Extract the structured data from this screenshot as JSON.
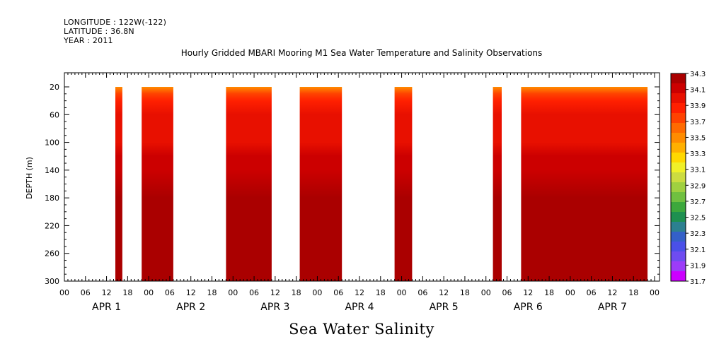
{
  "header": {
    "longitude": "LONGITUDE : 122W(-122)",
    "latitude": "LATITUDE : 36.8N",
    "year": "YEAR : 2011"
  },
  "colors": {
    "levels": [
      "#cc00ff",
      "#9c3cf8",
      "#6e4cf0",
      "#4a50e8",
      "#3460c8",
      "#2c8090",
      "#1e9050",
      "#3ca83c",
      "#70c040",
      "#a0d040",
      "#ccdc40",
      "#f0f028",
      "#ffd800",
      "#ffb000",
      "#ff8c00",
      "#ff6a00",
      "#ff4200",
      "#ff2000",
      "#e81000",
      "#cc0000",
      "#aa0000"
    ],
    "background": "#ffffff",
    "frame": "#000000"
  },
  "chart_data": {
    "type": "heatmap",
    "title": "Hourly Gridded MBARI Mooring M1 Sea Water Temperature and Salinity Observations",
    "xlabel": "Sea Water Salinity",
    "ylabel": "DEPTH (m)",
    "y_axis": {
      "range": [
        0,
        300
      ],
      "inverted": true,
      "ticks": [
        20,
        60,
        100,
        140,
        180,
        220,
        260,
        300
      ]
    },
    "x_axis": {
      "start": "APR 1 00",
      "hour_ticks": [
        "00",
        "06",
        "12",
        "18",
        "00",
        "06",
        "12",
        "18",
        "00",
        "06",
        "12",
        "18",
        "00",
        "06",
        "12",
        "18",
        "00",
        "06",
        "12",
        "18",
        "00",
        "06",
        "12",
        "18",
        "00",
        "06",
        "12",
        "18",
        "00"
      ],
      "day_labels": [
        "APR  1",
        "APR  2",
        "APR  3",
        "APR  4",
        "APR  5",
        "APR  6",
        "APR  7"
      ],
      "range_hours": [
        0,
        168
      ]
    },
    "colorbar": {
      "labels": [
        "34.3",
        "34.1",
        "33.9",
        "33.7",
        "33.5",
        "33.3",
        "33.1",
        "32.9",
        "32.7",
        "32.5",
        "32.3",
        "32.1",
        "31.9",
        "31.7"
      ],
      "min": 31.7,
      "max": 34.3
    },
    "data_blocks_hours": [
      [
        14.5,
        16.5
      ],
      [
        22.0,
        31.0
      ],
      [
        46.0,
        59.0
      ],
      [
        67.0,
        79.0
      ],
      [
        94.0,
        99.0
      ],
      [
        122.0,
        124.5
      ],
      [
        130.0,
        166.0
      ]
    ],
    "profile": {
      "depth_m": [
        20,
        30,
        40,
        60,
        80,
        100,
        120,
        140,
        180,
        220,
        230,
        260,
        280,
        300
      ],
      "salinity": [
        33.5,
        33.75,
        33.9,
        33.98,
        34.02,
        34.05,
        34.08,
        34.15,
        34.18,
        34.2,
        34.28,
        34.32,
        34.25,
        34.22
      ]
    }
  }
}
